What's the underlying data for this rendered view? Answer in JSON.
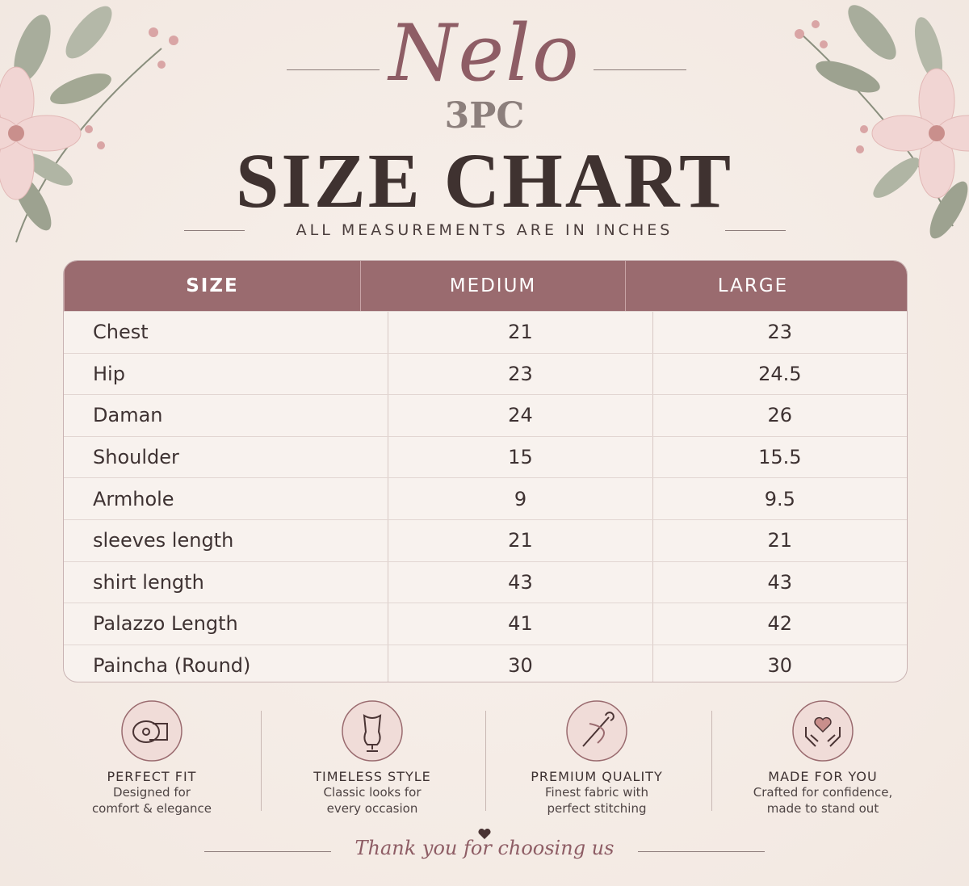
{
  "header": {
    "brand": "Nelo",
    "subtitle": "3PC",
    "title": "SIZE CHART",
    "note": "ALL MEASUREMENTS ARE IN INCHES"
  },
  "table": {
    "columns": [
      "SIZE",
      "MEDIUM",
      "LARGE"
    ],
    "rows": [
      [
        "Chest",
        21,
        23
      ],
      [
        "Hip",
        23,
        24.5
      ],
      [
        "Daman",
        24,
        26
      ],
      [
        "Shoulder",
        15,
        15.5
      ],
      [
        "Armhole",
        9,
        9.5
      ],
      [
        "sleeves length",
        21,
        21
      ],
      [
        "shirt length",
        43,
        43
      ],
      [
        "Palazzo Length",
        41,
        42
      ],
      [
        "Paincha (Round)",
        30,
        30
      ]
    ]
  },
  "features": [
    {
      "title": "PERFECT FIT",
      "lines": [
        "Designed for",
        "comfort & elegance"
      ]
    },
    {
      "title": "TIMELESS STYLE",
      "lines": [
        "Classic looks for",
        "every occasion"
      ]
    },
    {
      "title": "PREMIUM QUALITY",
      "lines": [
        "Finest fabric with",
        "perfect stitching"
      ]
    },
    {
      "title": "MADE FOR YOU",
      "lines": [
        "Crafted for confidence,",
        "made to stand out"
      ]
    }
  ],
  "footer": {
    "message": "Thank you for choosing us"
  }
}
